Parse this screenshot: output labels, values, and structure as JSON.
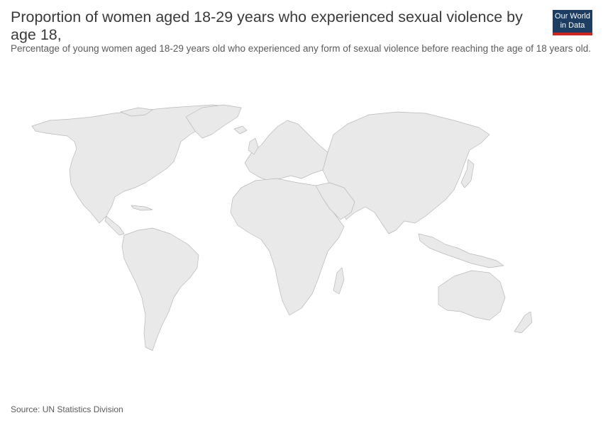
{
  "header": {
    "title": "Proportion of women aged 18-29 years who experienced sexual violence by age 18,",
    "subtitle": "Percentage of young women aged 18-29 years old who experienced any form of sexual violence before reaching the age of 18 years old."
  },
  "logo": {
    "line1": "Our World",
    "line2": "in Data"
  },
  "map": {
    "fill_color": "#e9e9e9",
    "border_color": "#b8b8b8",
    "data_available": false
  },
  "footer": {
    "source": "Source: UN Statistics Division"
  },
  "colors": {
    "logo_bg": "#1d3d63",
    "logo_accent": "#ce261e"
  }
}
